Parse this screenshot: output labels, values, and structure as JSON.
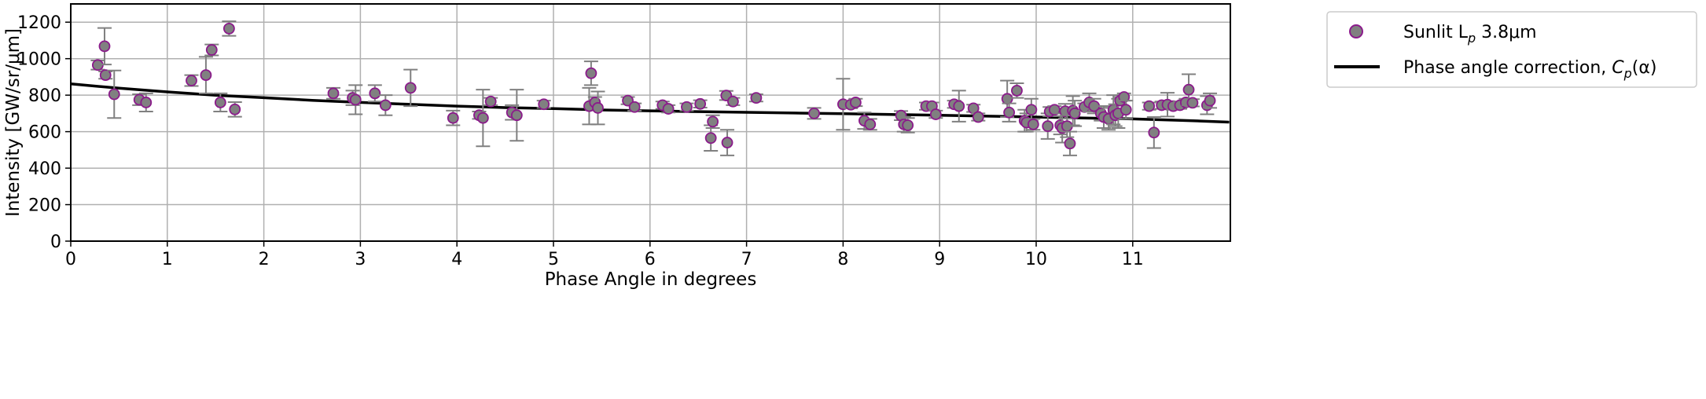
{
  "chart_data": {
    "type": "scatter",
    "xlabel": "Phase Angle in degrees",
    "ylabel": "Intensity [GW/sr/μm]",
    "xlim": [
      0,
      12
    ],
    "ylim": [
      0,
      1300
    ],
    "x_ticks": [
      "0",
      "1",
      "2",
      "3",
      "4",
      "5",
      "6",
      "7",
      "8",
      "9",
      "10",
      "11"
    ],
    "y_ticks": [
      "0",
      "200",
      "400",
      "600",
      "800",
      "1000",
      "1200"
    ],
    "grid": true,
    "legend_position": "top-right",
    "colors": {
      "marker_fill": "#808080",
      "marker_edge": "#8b1a8b",
      "errorbar": "#808080",
      "line": "#000000",
      "grid": "#b0b0b0"
    },
    "series": [
      {
        "name": "Sunlit Lp 3.8μm",
        "legend_label": "Sunlit L",
        "legend_sub": "p",
        "legend_suffix": " 3.8μm",
        "kind": "errorbar",
        "points": [
          {
            "x": 0.28,
            "y": 965,
            "err": 25
          },
          {
            "x": 0.35,
            "y": 1068,
            "err": 100
          },
          {
            "x": 0.36,
            "y": 910,
            "err": 20
          },
          {
            "x": 0.45,
            "y": 805,
            "err": 130
          },
          {
            "x": 0.71,
            "y": 775,
            "err": 30
          },
          {
            "x": 0.78,
            "y": 760,
            "err": 50
          },
          {
            "x": 1.25,
            "y": 880,
            "err": 30
          },
          {
            "x": 1.4,
            "y": 910,
            "err": 100
          },
          {
            "x": 1.46,
            "y": 1048,
            "err": 30
          },
          {
            "x": 1.55,
            "y": 760,
            "err": 50
          },
          {
            "x": 1.64,
            "y": 1165,
            "err": 40
          },
          {
            "x": 1.7,
            "y": 722,
            "err": 40
          },
          {
            "x": 2.72,
            "y": 810,
            "err": 30
          },
          {
            "x": 2.92,
            "y": 785,
            "err": 40
          },
          {
            "x": 2.95,
            "y": 775,
            "err": 80
          },
          {
            "x": 3.15,
            "y": 810,
            "err": 45
          },
          {
            "x": 3.26,
            "y": 745,
            "err": 55
          },
          {
            "x": 3.52,
            "y": 840,
            "err": 100
          },
          {
            "x": 3.96,
            "y": 675,
            "err": 40
          },
          {
            "x": 4.23,
            "y": 690,
            "err": 20
          },
          {
            "x": 4.27,
            "y": 675,
            "err": 155
          },
          {
            "x": 4.35,
            "y": 765,
            "err": 20
          },
          {
            "x": 4.57,
            "y": 705,
            "err": 40
          },
          {
            "x": 4.62,
            "y": 690,
            "err": 140
          },
          {
            "x": 4.9,
            "y": 750,
            "err": 20
          },
          {
            "x": 5.37,
            "y": 740,
            "err": 100
          },
          {
            "x": 5.39,
            "y": 920,
            "err": 65
          },
          {
            "x": 5.43,
            "y": 760,
            "err": 30
          },
          {
            "x": 5.46,
            "y": 730,
            "err": 90
          },
          {
            "x": 5.77,
            "y": 770,
            "err": 20
          },
          {
            "x": 5.84,
            "y": 735,
            "err": 20
          },
          {
            "x": 6.13,
            "y": 745,
            "err": 20
          },
          {
            "x": 6.19,
            "y": 725,
            "err": 20
          },
          {
            "x": 6.38,
            "y": 735,
            "err": 20
          },
          {
            "x": 6.52,
            "y": 752,
            "err": 20
          },
          {
            "x": 6.63,
            "y": 565,
            "err": 70
          },
          {
            "x": 6.65,
            "y": 655,
            "err": 35
          },
          {
            "x": 6.79,
            "y": 798,
            "err": 25
          },
          {
            "x": 6.8,
            "y": 540,
            "err": 70
          },
          {
            "x": 6.86,
            "y": 765,
            "err": 20
          },
          {
            "x": 7.1,
            "y": 785,
            "err": 20
          },
          {
            "x": 7.7,
            "y": 700,
            "err": 30
          },
          {
            "x": 8.0,
            "y": 750,
            "err": 140
          },
          {
            "x": 8.08,
            "y": 748,
            "err": 20
          },
          {
            "x": 8.13,
            "y": 760,
            "err": 20
          },
          {
            "x": 8.22,
            "y": 660,
            "err": 45
          },
          {
            "x": 8.28,
            "y": 640,
            "err": 30
          },
          {
            "x": 8.6,
            "y": 688,
            "err": 25
          },
          {
            "x": 8.63,
            "y": 640,
            "err": 40
          },
          {
            "x": 8.67,
            "y": 635,
            "err": 40
          },
          {
            "x": 8.86,
            "y": 740,
            "err": 20
          },
          {
            "x": 8.92,
            "y": 740,
            "err": 20
          },
          {
            "x": 8.96,
            "y": 695,
            "err": 20
          },
          {
            "x": 9.15,
            "y": 750,
            "err": 20
          },
          {
            "x": 9.2,
            "y": 740,
            "err": 85
          },
          {
            "x": 9.35,
            "y": 728,
            "err": 20
          },
          {
            "x": 9.4,
            "y": 680,
            "err": 20
          },
          {
            "x": 9.7,
            "y": 780,
            "err": 100
          },
          {
            "x": 9.72,
            "y": 705,
            "err": 50
          },
          {
            "x": 9.8,
            "y": 825,
            "err": 40
          },
          {
            "x": 9.88,
            "y": 660,
            "err": 60
          },
          {
            "x": 9.9,
            "y": 650,
            "err": 50
          },
          {
            "x": 9.95,
            "y": 720,
            "err": 60
          },
          {
            "x": 9.97,
            "y": 640,
            "err": 30
          },
          {
            "x": 10.12,
            "y": 630,
            "err": 70
          },
          {
            "x": 10.14,
            "y": 710,
            "err": 25
          },
          {
            "x": 10.19,
            "y": 720,
            "err": 20
          },
          {
            "x": 10.25,
            "y": 635,
            "err": 50
          },
          {
            "x": 10.27,
            "y": 620,
            "err": 80
          },
          {
            "x": 10.3,
            "y": 712,
            "err": 40
          },
          {
            "x": 10.32,
            "y": 630,
            "err": 60
          },
          {
            "x": 10.35,
            "y": 535,
            "err": 65
          },
          {
            "x": 10.38,
            "y": 715,
            "err": 80
          },
          {
            "x": 10.4,
            "y": 700,
            "err": 70
          },
          {
            "x": 10.5,
            "y": 735,
            "err": 20
          },
          {
            "x": 10.55,
            "y": 760,
            "err": 50
          },
          {
            "x": 10.6,
            "y": 740,
            "err": 40
          },
          {
            "x": 10.67,
            "y": 700,
            "err": 40
          },
          {
            "x": 10.7,
            "y": 680,
            "err": 60
          },
          {
            "x": 10.75,
            "y": 670,
            "err": 60
          },
          {
            "x": 10.8,
            "y": 720,
            "err": 80
          },
          {
            "x": 10.82,
            "y": 690,
            "err": 60
          },
          {
            "x": 10.85,
            "y": 700,
            "err": 80
          },
          {
            "x": 10.87,
            "y": 770,
            "err": 20
          },
          {
            "x": 10.91,
            "y": 790,
            "err": 20
          },
          {
            "x": 10.93,
            "y": 720,
            "err": 50
          },
          {
            "x": 11.17,
            "y": 740,
            "err": 20
          },
          {
            "x": 11.22,
            "y": 595,
            "err": 85
          },
          {
            "x": 11.3,
            "y": 745,
            "err": 20
          },
          {
            "x": 11.36,
            "y": 748,
            "err": 65
          },
          {
            "x": 11.42,
            "y": 740,
            "err": 20
          },
          {
            "x": 11.49,
            "y": 745,
            "err": 20
          },
          {
            "x": 11.55,
            "y": 760,
            "err": 20
          },
          {
            "x": 11.58,
            "y": 830,
            "err": 85
          },
          {
            "x": 11.62,
            "y": 758,
            "err": 20
          },
          {
            "x": 11.77,
            "y": 745,
            "err": 50
          },
          {
            "x": 11.8,
            "y": 770,
            "err": 40
          }
        ]
      },
      {
        "name": "Phase angle correction, Cp(α)",
        "legend_label": "Phase angle correction, ",
        "legend_math": "C",
        "legend_sub": "p",
        "legend_tail": "(α)",
        "kind": "line",
        "x": [
          0,
          0.5,
          1,
          1.5,
          2,
          2.5,
          3,
          3.5,
          4,
          4.5,
          5,
          5.5,
          6,
          6.5,
          7,
          7.5,
          8,
          8.5,
          9,
          9.5,
          10,
          10.5,
          11,
          11.5,
          12
        ],
        "y": [
          862,
          838,
          818,
          800,
          786,
          772,
          760,
          750,
          740,
          732,
          726,
          719,
          714,
          710,
          706,
          702,
          698,
          694,
          690,
          685,
          680,
          675,
          670,
          662,
          652
        ]
      }
    ]
  }
}
